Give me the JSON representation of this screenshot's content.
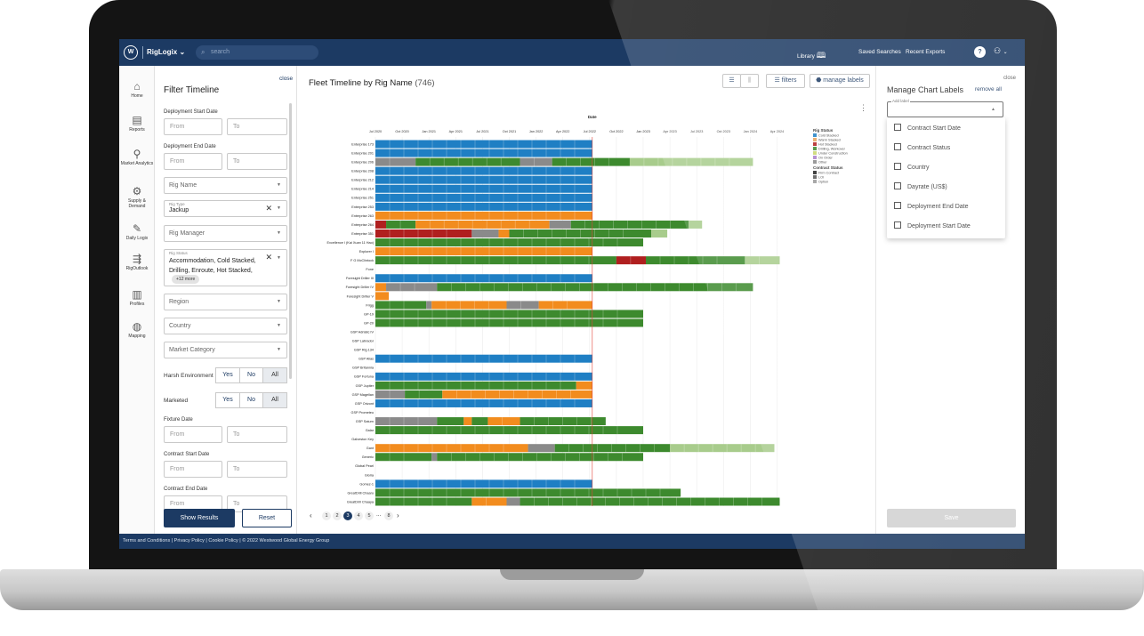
{
  "topbar": {
    "logo_letter": "W",
    "brand": "RigLogix",
    "brand_chevron": "⌄",
    "search_placeholder": "search",
    "library_label": "Library",
    "saved_searches": "Saved Searches",
    "recent_exports": "Recent Exports",
    "help": "?"
  },
  "nav": [
    {
      "label": "Home",
      "icon": "home-icon"
    },
    {
      "label": "Reports",
      "icon": "reports-icon"
    },
    {
      "label": "Market Analytics",
      "icon": "market-analytics-icon"
    },
    {
      "label": "Supply & Demand",
      "icon": "supply-demand-icon"
    },
    {
      "label": "Daily Logix",
      "icon": "daily-logix-icon"
    },
    {
      "label": "RigOutlook",
      "icon": "rigoutlook-icon"
    },
    {
      "label": "Profiles",
      "icon": "profiles-icon"
    },
    {
      "label": "Mapping",
      "icon": "mapping-icon"
    }
  ],
  "filter": {
    "title": "Filter Timeline",
    "close": "close",
    "deployment_start_label": "Deployment Start Date",
    "deployment_end_label": "Deployment End Date",
    "from": "From",
    "to": "To",
    "rig_name": "Rig Name",
    "rig_type_mini": "Rig Type",
    "rig_type_value": "Jackup",
    "rig_manager": "Rig Manager",
    "rig_status_mini": "Rig Status",
    "rig_status_value": "Accommodation, Cold Stacked, Drilling, Enroute, Hot Stacked,",
    "rig_status_more": "+12 more",
    "region": "Region",
    "country": "Country",
    "market_category": "Market Category",
    "harsh_env_label": "Harsh Environment",
    "marketed_label": "Marketed",
    "yes": "Yes",
    "no": "No",
    "all": "All",
    "fixture_date_label": "Fixture Date",
    "contract_start_label": "Contract Start Date",
    "contract_end_label": "Contract End Date",
    "show_results": "Show Results",
    "reset": "Reset"
  },
  "main": {
    "title": "Fleet Timeline by Rig Name",
    "count": "(746)",
    "filters_button": "filters",
    "manage_labels_button": "manage labels",
    "pagination": [
      "1",
      "2",
      "3",
      "4",
      "5",
      "...",
      "8"
    ],
    "current_page": "3"
  },
  "chart_data": {
    "type": "gantt",
    "x_title": "Date",
    "x_ticks": [
      "Jul 2020",
      "Oct 2020",
      "Jan 2021",
      "Apr 2021",
      "Jul 2021",
      "Oct 2021",
      "Jan 2022",
      "Apr 2022",
      "Jul 2022",
      "Oct 2022",
      "Jan 2023",
      "Apr 2023",
      "Jul 2023",
      "Oct 2023",
      "Jan 2024",
      "Apr 2024"
    ],
    "today_index": 8.1,
    "legend_rig_status_title": "Rig Status",
    "legend_rig_status": [
      {
        "name": "Cold Stacked",
        "color": "#1f7fc4"
      },
      {
        "name": "Warm Stacked",
        "color": "#e6a35c"
      },
      {
        "name": "Hot Stacked",
        "color": "#b01f1f"
      },
      {
        "name": "Drilling, Workover",
        "color": "#3d8a2e"
      },
      {
        "name": "Under Construction",
        "color": "#c8d66a"
      },
      {
        "name": "On Order",
        "color": "#a97fc8"
      },
      {
        "name": "Other",
        "color": "#8a8a8a"
      }
    ],
    "legend_contract_title": "Contract Status",
    "legend_contract": [
      {
        "name": "Firm Contract",
        "color": "#222222"
      },
      {
        "name": "LOI",
        "color": "#555555"
      },
      {
        "name": "Option",
        "color": "#9a9a9a"
      }
    ],
    "colors": {
      "B": "#1f7fc4",
      "O": "#f28c1e",
      "R": "#b01f1f",
      "G": "#3d8a2e",
      "L": "#a8cc8c",
      "Y": "#8a8a8a"
    },
    "rows": [
      {
        "name": "Enterprise 173",
        "segs": [
          [
            "B",
            0,
            8.1
          ]
        ]
      },
      {
        "name": "Enterprise 201",
        "segs": [
          [
            "B",
            0,
            8.1
          ]
        ]
      },
      {
        "name": "Enterprise 206",
        "segs": [
          [
            "Y",
            0,
            1.5
          ],
          [
            "G",
            1.5,
            5.4
          ],
          [
            "Y",
            5.4,
            6.6
          ],
          [
            "G",
            6.6,
            9.5
          ],
          [
            "L",
            9.5,
            14.1
          ]
        ]
      },
      {
        "name": "Enterprise 208",
        "segs": [
          [
            "B",
            0,
            8.1
          ]
        ]
      },
      {
        "name": "Enterprise 212",
        "segs": [
          [
            "B",
            0,
            8.1
          ]
        ]
      },
      {
        "name": "Enterprise 214",
        "segs": [
          [
            "B",
            0,
            8.1
          ]
        ]
      },
      {
        "name": "Enterprise 251",
        "segs": [
          [
            "B",
            0,
            8.1
          ]
        ]
      },
      {
        "name": "Enterprise 253",
        "segs": [
          [
            "B",
            0,
            8.1
          ]
        ]
      },
      {
        "name": "Enterprise 263",
        "segs": [
          [
            "O",
            0,
            8.1
          ]
        ]
      },
      {
        "name": "Enterprise 264",
        "segs": [
          [
            "R",
            0,
            0.4
          ],
          [
            "G",
            0.4,
            1.5
          ],
          [
            "O",
            1.5,
            6.5
          ],
          [
            "Y",
            6.5,
            7.3
          ],
          [
            "G",
            7.3,
            11.7
          ],
          [
            "L",
            11.7,
            12.2
          ]
        ]
      },
      {
        "name": "Enterprise 351",
        "segs": [
          [
            "R",
            0,
            3.6
          ],
          [
            "Y",
            3.6,
            4.6
          ],
          [
            "O",
            4.6,
            5.0
          ],
          [
            "G",
            5.0,
            10.3
          ],
          [
            "L",
            10.3,
            10.9
          ]
        ]
      },
      {
        "name": "Excellence I (Kai Xuan 11 Hao)",
        "segs": [
          [
            "G",
            0,
            10.0
          ]
        ]
      },
      {
        "name": "Explorer I",
        "segs": [
          [
            "O",
            0,
            8.1
          ]
        ]
      },
      {
        "name": "F G McClintock",
        "segs": [
          [
            "G",
            0,
            9.0
          ],
          [
            "R",
            9.0,
            10.1
          ],
          [
            "G",
            10.1,
            13.8
          ],
          [
            "L",
            13.8,
            15.1
          ]
        ]
      },
      {
        "name": "Fone",
        "segs": []
      },
      {
        "name": "Foresight Driller III",
        "segs": [
          [
            "B",
            0,
            8.1
          ]
        ]
      },
      {
        "name": "Foresight Driller IV",
        "segs": [
          [
            "O",
            0,
            0.4
          ],
          [
            "Y",
            0.4,
            2.3
          ],
          [
            "G",
            2.3,
            14.1
          ]
        ]
      },
      {
        "name": "Foresight Driller V",
        "segs": [
          [
            "O",
            0,
            0.5
          ]
        ]
      },
      {
        "name": "Frigg",
        "segs": [
          [
            "G",
            0,
            1.9
          ],
          [
            "Y",
            1.9,
            2.1
          ],
          [
            "O",
            2.1,
            4.9
          ],
          [
            "Y",
            4.9,
            6.1
          ],
          [
            "O",
            6.1,
            8.1
          ]
        ]
      },
      {
        "name": "GP-19",
        "segs": [
          [
            "G",
            0,
            10.0
          ]
        ]
      },
      {
        "name": "GP-20",
        "segs": [
          [
            "G",
            0,
            10.0
          ]
        ]
      },
      {
        "name": "GSP Adriatic IV",
        "segs": []
      },
      {
        "name": "GSP Labrador",
        "segs": []
      },
      {
        "name": "GSP Rig 134",
        "segs": []
      },
      {
        "name": "GSP Alias",
        "segs": [
          [
            "B",
            0,
            8.1
          ]
        ]
      },
      {
        "name": "GSP Britannia",
        "segs": []
      },
      {
        "name": "GSP Fortuna",
        "segs": [
          [
            "B",
            0,
            8.1
          ]
        ]
      },
      {
        "name": "GSP Jupiter",
        "segs": [
          [
            "G",
            0,
            7.5
          ],
          [
            "O",
            7.5,
            8.1
          ]
        ]
      },
      {
        "name": "GSP Magellan",
        "segs": [
          [
            "Y",
            0,
            1.1
          ],
          [
            "G",
            1.1,
            2.5
          ],
          [
            "O",
            2.5,
            8.1
          ]
        ]
      },
      {
        "name": "GSP Orizont",
        "segs": [
          [
            "B",
            0,
            8.1
          ]
        ]
      },
      {
        "name": "GSP Prometeu",
        "segs": []
      },
      {
        "name": "GSP Saturn",
        "segs": [
          [
            "Y",
            0,
            2.3
          ],
          [
            "G",
            2.3,
            3.3
          ],
          [
            "O",
            3.3,
            3.6
          ],
          [
            "G",
            3.6,
            4.2
          ],
          [
            "O",
            4.2,
            5.4
          ],
          [
            "G",
            5.4,
            8.6
          ]
        ]
      },
      {
        "name": "Galar",
        "segs": [
          [
            "G",
            0,
            10.0
          ]
        ]
      },
      {
        "name": "Galveston Key",
        "segs": []
      },
      {
        "name": "Gant",
        "segs": [
          [
            "O",
            0,
            5.7
          ],
          [
            "Y",
            5.7,
            6.7
          ],
          [
            "G",
            6.7,
            11.0
          ],
          [
            "L",
            11.0,
            14.9
          ]
        ]
      },
      {
        "name": "Generic",
        "segs": [
          [
            "G",
            0,
            2.1
          ],
          [
            "Y",
            2.1,
            2.3
          ],
          [
            "G",
            2.3,
            10.0
          ]
        ]
      },
      {
        "name": "Global Pearl",
        "segs": []
      },
      {
        "name": "Gloria",
        "segs": []
      },
      {
        "name": "Gomez-1",
        "segs": [
          [
            "B",
            0,
            8.1
          ]
        ]
      },
      {
        "name": "GreatDrill Chaaru",
        "segs": [
          [
            "G",
            0,
            11.4
          ]
        ]
      },
      {
        "name": "GreatDrill Chaaya",
        "segs": [
          [
            "G",
            0,
            3.6
          ],
          [
            "O",
            3.6,
            4.9
          ],
          [
            "Y",
            4.9,
            5.4
          ],
          [
            "G",
            5.4,
            15.1
          ]
        ]
      },
      {
        "name": "GreatDrill Chetna",
        "segs": [
          [
            "G",
            0,
            3.1
          ],
          [
            "R",
            3.1,
            3.7
          ],
          [
            "G",
            3.7,
            14.9
          ]
        ]
      }
    ]
  },
  "labels_panel": {
    "title": "Manage Chart Labels",
    "close": "close",
    "remove_all": "remove all",
    "add_label_mini": "Add label",
    "options": [
      "Contract Start Date",
      "Contract Status",
      "Country",
      "Dayrate (US$)",
      "Deployment End Date",
      "Deployment Start Date"
    ],
    "save": "Save"
  },
  "footer": {
    "text": "Terms and Conditions  |  Privacy Policy  |  Cookie Policy  |  © 2022 Westwood Global Energy Group"
  }
}
